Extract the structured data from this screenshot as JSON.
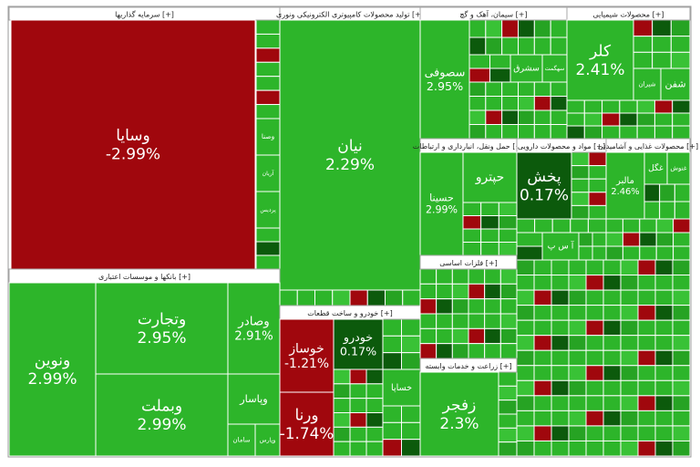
{
  "chart_data": {
    "type": "treemap",
    "groups": [
      {
        "name": "[+] سرمایه گذاریها",
        "labels": [
          "وسایا",
          "وصنا",
          "آریان",
          "پردیس"
        ],
        "values": [
          -2.99,
          null,
          null,
          null
        ],
        "value_labels": [
          "-2.99%",
          null,
          null,
          null
        ]
      },
      {
        "name": "[+] تولید محصولات کامپیوتری الکترونیکی ونوری",
        "labels": [
          "نیان"
        ],
        "values": [
          2.29
        ],
        "value_labels": [
          "2.29%"
        ]
      },
      {
        "name": "[+] سیمان، آهک و گچ",
        "labels": [
          "سصوفی",
          "سشرق",
          "سهگمت"
        ],
        "values": [
          2.95,
          null,
          null
        ],
        "value_labels": [
          "2.95%",
          null,
          null
        ]
      },
      {
        "name": "[+] محصولات شیمیایی",
        "labels": [
          "کلر",
          "شیران",
          "شفن"
        ],
        "values": [
          2.41,
          null,
          null
        ],
        "value_labels": [
          "2.41%",
          null,
          null
        ]
      },
      {
        "name": "[+] بانکها و موسسات اعتباری",
        "labels": [
          "ونوین",
          "وتجارت",
          "وبملت",
          "وصادر",
          "وپاسار",
          "سامان",
          "وپارس"
        ],
        "values": [
          2.99,
          2.95,
          2.99,
          2.91,
          null,
          null,
          null
        ],
        "value_labels": [
          "2.99%",
          "2.95%",
          "2.99%",
          "2.91%",
          null,
          null,
          null
        ]
      },
      {
        "name": "[+] خودرو و ساخت قطعات",
        "labels": [
          "خوساز",
          "ورنا",
          "خودرو",
          "خساپا"
        ],
        "values": [
          -1.21,
          -1.74,
          0.17,
          null
        ],
        "value_labels": [
          "-1.21%",
          "-1.74%",
          "0.17%",
          null
        ]
      },
      {
        "name": "[+] حمل ونقل، انبارداری و ارتباطات",
        "labels": [
          "حسینا",
          "حپترو"
        ],
        "values": [
          2.99,
          null
        ],
        "value_labels": [
          "2.99%",
          null
        ]
      },
      {
        "name": "[+] مواد و محصولات دارویی",
        "labels": [
          "پخش",
          "آ س پ"
        ],
        "values": [
          0.17,
          null
        ],
        "value_labels": [
          "0.17%",
          null
        ]
      },
      {
        "name": "[+] محصولات غذایی و آشامیدنی",
        "labels": [
          "مالبر",
          "غگل",
          "غنوش"
        ],
        "values": [
          2.46,
          null,
          null
        ],
        "value_labels": [
          "2.46%",
          null,
          null
        ]
      },
      {
        "name": "[+] فلزات اساسی",
        "labels": [],
        "values": [],
        "value_labels": []
      },
      {
        "name": "[+] زراعت و خدمات وابسته",
        "labels": [
          "زفجر"
        ],
        "values": [
          2.3
        ],
        "value_labels": [
          "2.3%"
        ]
      }
    ]
  }
}
